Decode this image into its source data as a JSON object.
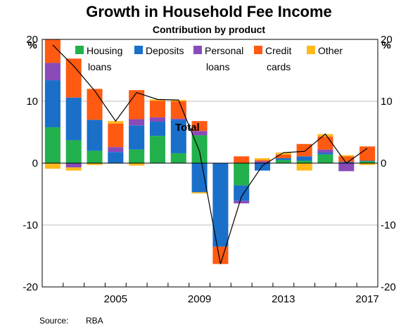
{
  "chart_data": {
    "type": "bar",
    "stacked": true,
    "title": "Growth in Household Fee Income",
    "subtitle": "Contribution by product",
    "y_unit": "%",
    "ylim": [
      -20,
      20
    ],
    "yticks": [
      -20,
      -10,
      0,
      10,
      20
    ],
    "years": [
      2002,
      2003,
      2004,
      2005,
      2006,
      2007,
      2008,
      2009,
      2010,
      2011,
      2012,
      2013,
      2014,
      2015,
      2016,
      2017
    ],
    "xtick_labels": [
      "2005",
      "2009",
      "2013",
      "2017"
    ],
    "xtick_years": [
      2005,
      2009,
      2013,
      2017
    ],
    "series": [
      {
        "name": "Housing loans",
        "legend_lines": [
          "Housing",
          "loans"
        ],
        "color": "#22b14c",
        "values": [
          5.8,
          3.7,
          2.0,
          0.0,
          2.2,
          4.4,
          1.6,
          4.5,
          0.0,
          -3.6,
          0.0,
          0.5,
          0.4,
          1.4,
          0.0,
          0.3
        ]
      },
      {
        "name": "Deposits",
        "legend_lines": [
          "Deposits"
        ],
        "color": "#1a6fc9",
        "values": [
          7.6,
          6.9,
          5.0,
          1.8,
          3.9,
          2.3,
          5.4,
          -4.7,
          -13.5,
          -2.5,
          -1.2,
          0.3,
          0.7,
          0.3,
          0.2,
          0.1
        ]
      },
      {
        "name": "Personal loans",
        "legend_lines": [
          "Personal",
          "loans"
        ],
        "color": "#8a4bb8",
        "values": [
          2.8,
          -0.7,
          0.0,
          0.8,
          1.0,
          0.7,
          0.2,
          0.7,
          0.0,
          -0.4,
          0.3,
          0.0,
          0.0,
          0.5,
          -1.3,
          0.0
        ]
      },
      {
        "name": "Credit cards",
        "legend_lines": [
          "Credit",
          "cards"
        ],
        "color": "#ff5a12",
        "values": [
          3.8,
          6.3,
          5.0,
          3.8,
          4.7,
          2.7,
          2.8,
          1.6,
          -2.8,
          1.1,
          0.2,
          0.6,
          2.0,
          2.1,
          0.9,
          2.3
        ]
      },
      {
        "name": "Other",
        "legend_lines": [
          "Other"
        ],
        "color": "#ffb81c",
        "values": [
          -0.9,
          -0.5,
          -0.3,
          0.4,
          -0.4,
          0.2,
          0.2,
          -0.2,
          0.0,
          0.0,
          0.3,
          0.3,
          -1.2,
          0.4,
          0.2,
          -0.3
        ]
      }
    ],
    "total": {
      "label": "Total",
      "color": "#000000",
      "values": [
        19.1,
        15.7,
        11.7,
        6.8,
        11.4,
        10.3,
        10.2,
        1.9,
        -16.3,
        -5.4,
        -0.4,
        1.7,
        1.9,
        4.7,
        0.0,
        2.4
      ]
    },
    "source_label": "Source:",
    "source": "RBA"
  }
}
